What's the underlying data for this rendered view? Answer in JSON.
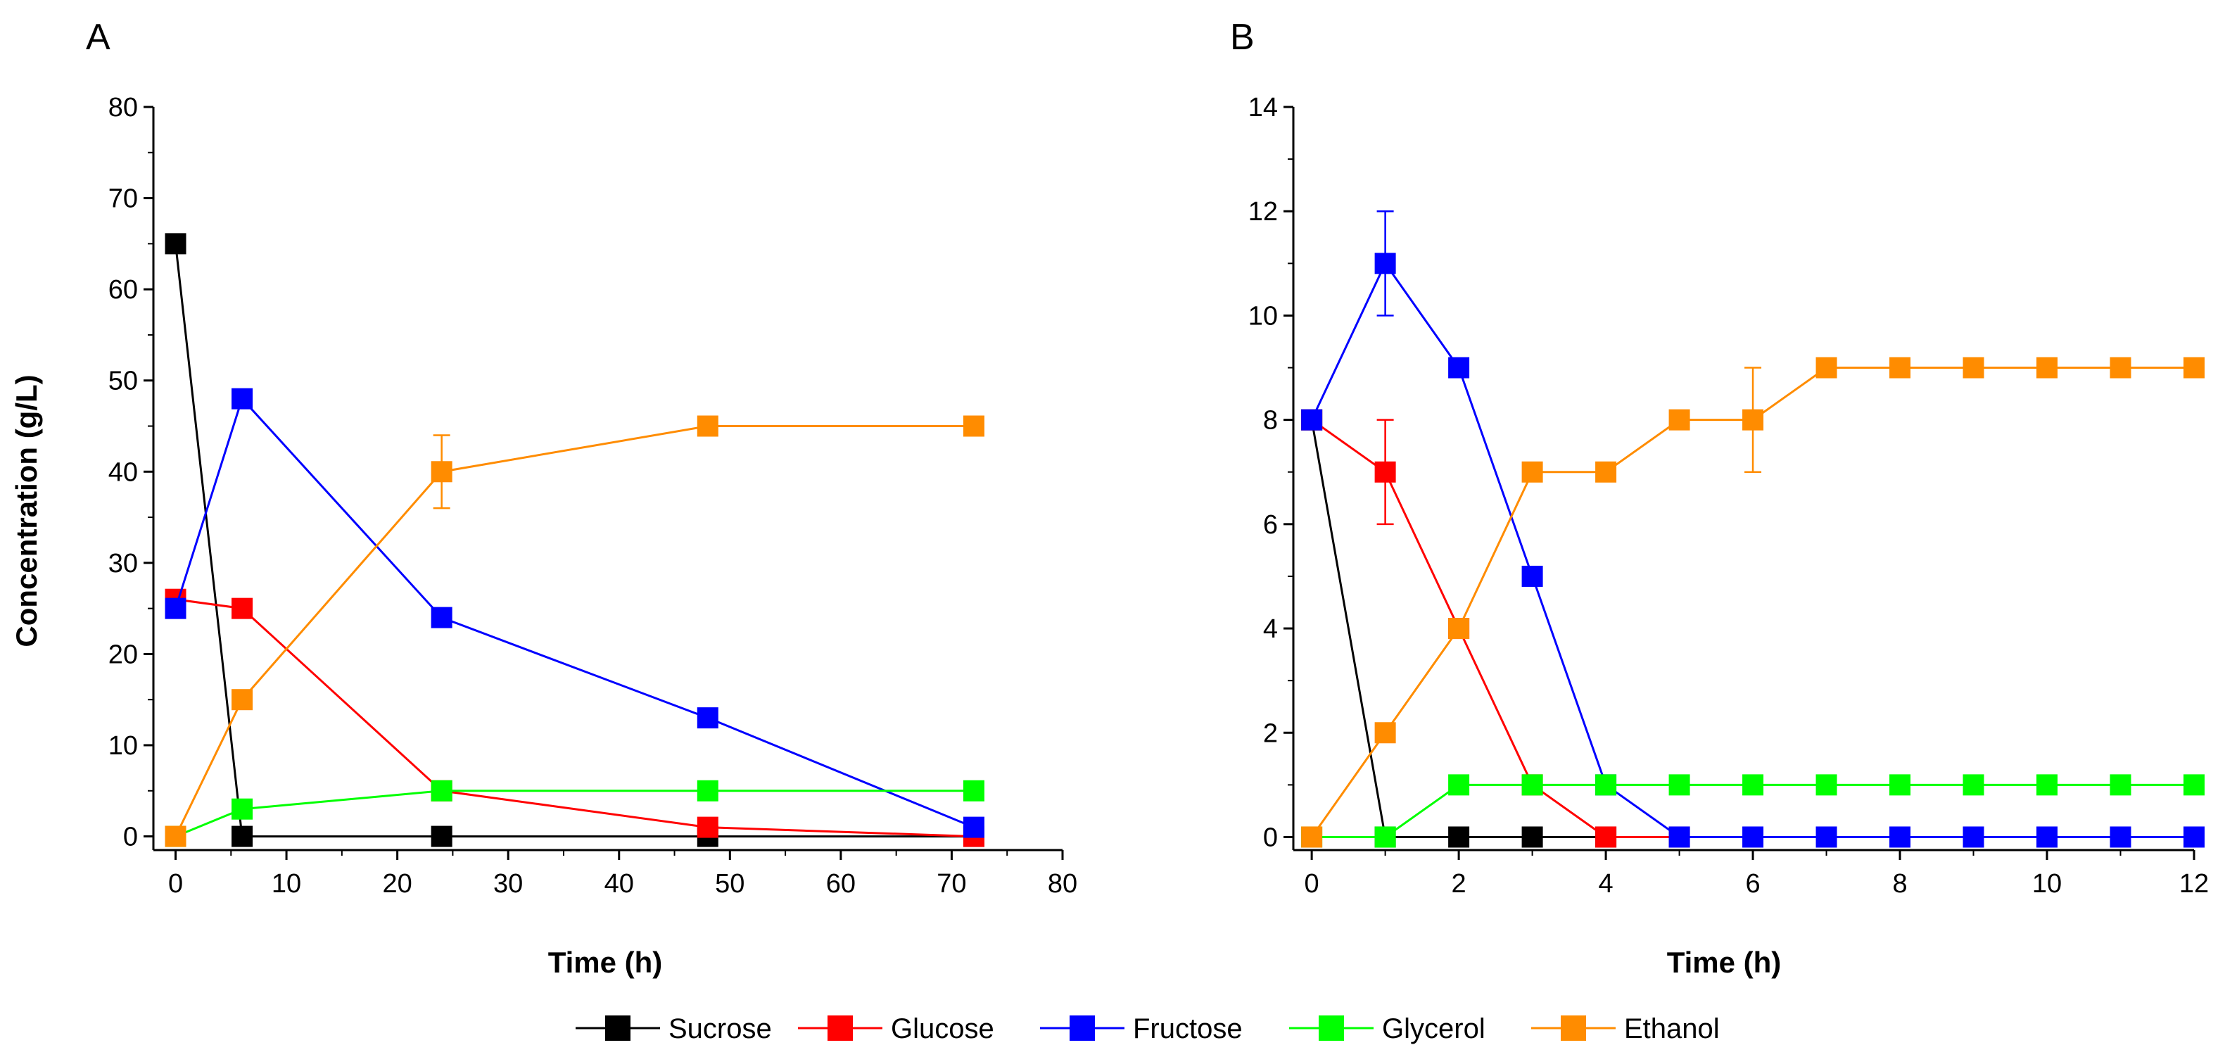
{
  "chart_data": [
    {
      "type": "line",
      "panel_label": "A",
      "title": "",
      "xlabel": "Time (h)",
      "ylabel": "Concentration (g/L)",
      "xlim": [
        0,
        80
      ],
      "ylim": [
        0,
        80
      ],
      "x_ticks": [
        0,
        10,
        20,
        30,
        40,
        50,
        60,
        70,
        80
      ],
      "y_ticks": [
        0,
        10,
        20,
        30,
        40,
        50,
        60,
        70,
        80
      ],
      "x_tick_labels": [
        "0",
        "10",
        "20",
        "30",
        "40",
        "50",
        "60",
        "70",
        "80"
      ],
      "y_tick_labels": [
        "0",
        "10",
        "20",
        "30",
        "40",
        "50",
        "60",
        "70",
        "80"
      ],
      "grid": false,
      "series": [
        {
          "name": "Sucrose",
          "color": "#000000",
          "x": [
            0,
            6,
            24,
            48,
            72
          ],
          "values": [
            65,
            0,
            0,
            0,
            0
          ]
        },
        {
          "name": "Glucose",
          "color": "#ff0000",
          "x": [
            0,
            6,
            24,
            48,
            72
          ],
          "values": [
            26,
            25,
            5,
            1,
            0
          ]
        },
        {
          "name": "Fructose",
          "color": "#0000ff",
          "x": [
            0,
            6,
            24,
            48,
            72
          ],
          "values": [
            25,
            48,
            24,
            13,
            1
          ]
        },
        {
          "name": "Glycerol",
          "color": "#00ff00",
          "x": [
            0,
            6,
            24,
            48,
            72
          ],
          "values": [
            0,
            3,
            5,
            5,
            5
          ]
        },
        {
          "name": "Ethanol",
          "color": "#ff8c00",
          "x": [
            0,
            6,
            24,
            48,
            72
          ],
          "values": [
            0,
            15,
            40,
            45,
            45
          ],
          "errors": [
            0,
            0,
            4,
            0,
            0
          ]
        }
      ]
    },
    {
      "type": "line",
      "panel_label": "B",
      "title": "",
      "xlabel": "Time (h)",
      "ylabel": "",
      "xlim": [
        0,
        12
      ],
      "ylim": [
        0,
        14
      ],
      "x_ticks": [
        0,
        2,
        4,
        6,
        8,
        10,
        12
      ],
      "y_ticks": [
        0,
        2,
        4,
        6,
        8,
        10,
        12,
        14
      ],
      "x_tick_labels": [
        "0",
        "2",
        "4",
        "6",
        "8",
        "10",
        "12"
      ],
      "y_tick_labels": [
        "0",
        "2",
        "4",
        "6",
        "8",
        "10",
        "12",
        "14"
      ],
      "grid": false,
      "series": [
        {
          "name": "Sucrose",
          "color": "#000000",
          "x": [
            0,
            1,
            2,
            3,
            4
          ],
          "values": [
            8,
            0,
            0,
            0,
            0
          ]
        },
        {
          "name": "Glucose",
          "color": "#ff0000",
          "x": [
            0,
            1,
            2,
            3,
            4,
            5
          ],
          "values": [
            8,
            7,
            4,
            1,
            0,
            0
          ],
          "errors": [
            0,
            1,
            0,
            0,
            0,
            0
          ]
        },
        {
          "name": "Fructose",
          "color": "#0000ff",
          "x": [
            0,
            1,
            2,
            3,
            4,
            5,
            6,
            7,
            8,
            9,
            10,
            11,
            12
          ],
          "values": [
            8,
            11,
            9,
            5,
            1,
            0,
            0,
            0,
            0,
            0,
            0,
            0,
            0
          ],
          "errors": [
            0,
            1,
            0,
            0,
            0,
            0,
            0,
            0,
            0,
            0,
            0,
            0,
            0
          ]
        },
        {
          "name": "Glycerol",
          "color": "#00ff00",
          "x": [
            0,
            1,
            2,
            3,
            4,
            5,
            6,
            7,
            8,
            9,
            10,
            11,
            12
          ],
          "values": [
            0,
            0,
            1,
            1,
            1,
            1,
            1,
            1,
            1,
            1,
            1,
            1,
            1
          ]
        },
        {
          "name": "Ethanol",
          "color": "#ff8c00",
          "x": [
            0,
            1,
            2,
            3,
            4,
            5,
            6,
            7,
            8,
            9,
            10,
            11,
            12
          ],
          "values": [
            0,
            2,
            4,
            7,
            7,
            8,
            8,
            9,
            9,
            9,
            9,
            9,
            9
          ],
          "errors": [
            0,
            0,
            0,
            0,
            0,
            0,
            1,
            0,
            0,
            0,
            0,
            0,
            0
          ]
        }
      ]
    }
  ],
  "legend": {
    "placement": "bottom-center",
    "entries": [
      {
        "name": "Sucrose",
        "color": "#000000"
      },
      {
        "name": "Glucose",
        "color": "#ff0000"
      },
      {
        "name": "Fructose",
        "color": "#0000ff"
      },
      {
        "name": "Glycerol",
        "color": "#00ff00"
      },
      {
        "name": "Ethanol",
        "color": "#ff8c00"
      }
    ]
  }
}
